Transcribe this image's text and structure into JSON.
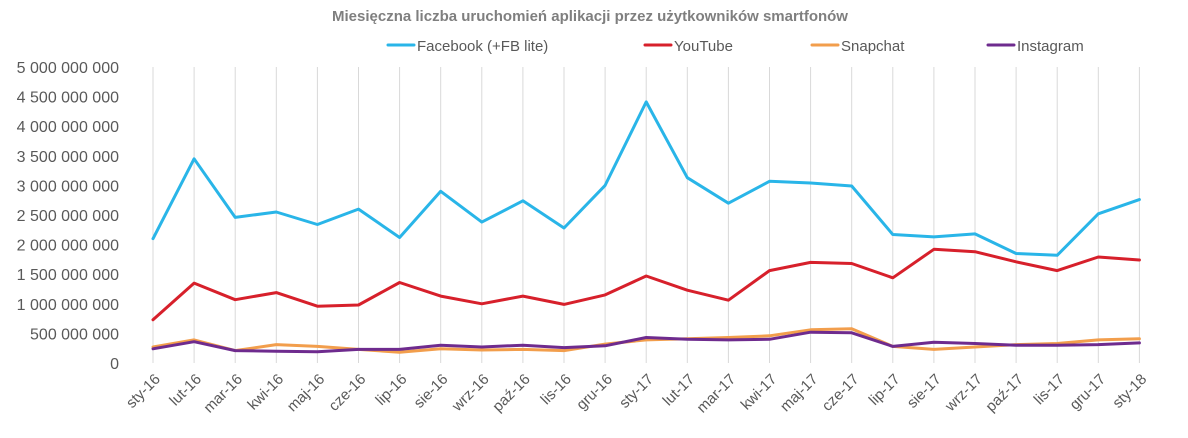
{
  "chart_data": {
    "type": "line",
    "title": "Miesięczna liczba uruchomień aplikacji przez użytkowników smartfonów",
    "xlabel": "",
    "ylabel": "",
    "ylim": [
      0,
      5000000000
    ],
    "grid": "vertical",
    "legend_position": "top",
    "categories": [
      "sty-16",
      "lut-16",
      "mar-16",
      "kwi-16",
      "maj-16",
      "cze-16",
      "lip-16",
      "sie-16",
      "wrz-16",
      "paź-16",
      "lis-16",
      "gru-16",
      "sty-17",
      "lut-17",
      "mar-17",
      "kwi-17",
      "maj-17",
      "cze-17",
      "lip-17",
      "sie-17",
      "wrz-17",
      "paź-17",
      "lis-17",
      "gru-17",
      "sty-18"
    ],
    "yticks": [
      {
        "value": 0,
        "label": "0"
      },
      {
        "value": 500000000,
        "label": "500 000 000"
      },
      {
        "value": 1000000000,
        "label": "1 000 000 000"
      },
      {
        "value": 1500000000,
        "label": "1 500 000 000"
      },
      {
        "value": 2000000000,
        "label": "2 000 000 000"
      },
      {
        "value": 2500000000,
        "label": "2 500 000 000"
      },
      {
        "value": 3000000000,
        "label": "3 000 000 000"
      },
      {
        "value": 3500000000,
        "label": "3 500 000 000"
      },
      {
        "value": 4000000000,
        "label": "4 000 000 000"
      },
      {
        "value": 4500000000,
        "label": "4 500 000 000"
      },
      {
        "value": 5000000000,
        "label": "5 000 000 000"
      }
    ],
    "series": [
      {
        "name": "Facebook (+FB lite)",
        "color": "#29b5e8",
        "values": [
          2100000000,
          3450000000,
          2460000000,
          2550000000,
          2340000000,
          2600000000,
          2120000000,
          2900000000,
          2380000000,
          2740000000,
          2280000000,
          3000000000,
          4410000000,
          3130000000,
          2700000000,
          3070000000,
          3040000000,
          2990000000,
          2170000000,
          2130000000,
          2180000000,
          1850000000,
          1820000000,
          2520000000,
          2760000000
        ]
      },
      {
        "name": "YouTube",
        "color": "#d7202b",
        "values": [
          730000000,
          1350000000,
          1070000000,
          1190000000,
          960000000,
          980000000,
          1360000000,
          1130000000,
          1000000000,
          1130000000,
          990000000,
          1150000000,
          1470000000,
          1230000000,
          1060000000,
          1560000000,
          1700000000,
          1680000000,
          1440000000,
          1920000000,
          1880000000,
          1710000000,
          1560000000,
          1790000000,
          1740000000
        ]
      },
      {
        "name": "Snapchat",
        "color": "#f29e4c",
        "values": [
          270000000,
          390000000,
          210000000,
          310000000,
          280000000,
          230000000,
          180000000,
          240000000,
          220000000,
          230000000,
          210000000,
          320000000,
          390000000,
          410000000,
          430000000,
          460000000,
          560000000,
          580000000,
          280000000,
          230000000,
          270000000,
          310000000,
          330000000,
          390000000,
          410000000
        ]
      },
      {
        "name": "Instagram",
        "color": "#6e2b8e",
        "values": [
          240000000,
          360000000,
          210000000,
          200000000,
          190000000,
          230000000,
          230000000,
          300000000,
          270000000,
          300000000,
          260000000,
          290000000,
          430000000,
          400000000,
          390000000,
          400000000,
          520000000,
          510000000,
          280000000,
          350000000,
          330000000,
          300000000,
          300000000,
          310000000,
          340000000
        ]
      }
    ]
  }
}
